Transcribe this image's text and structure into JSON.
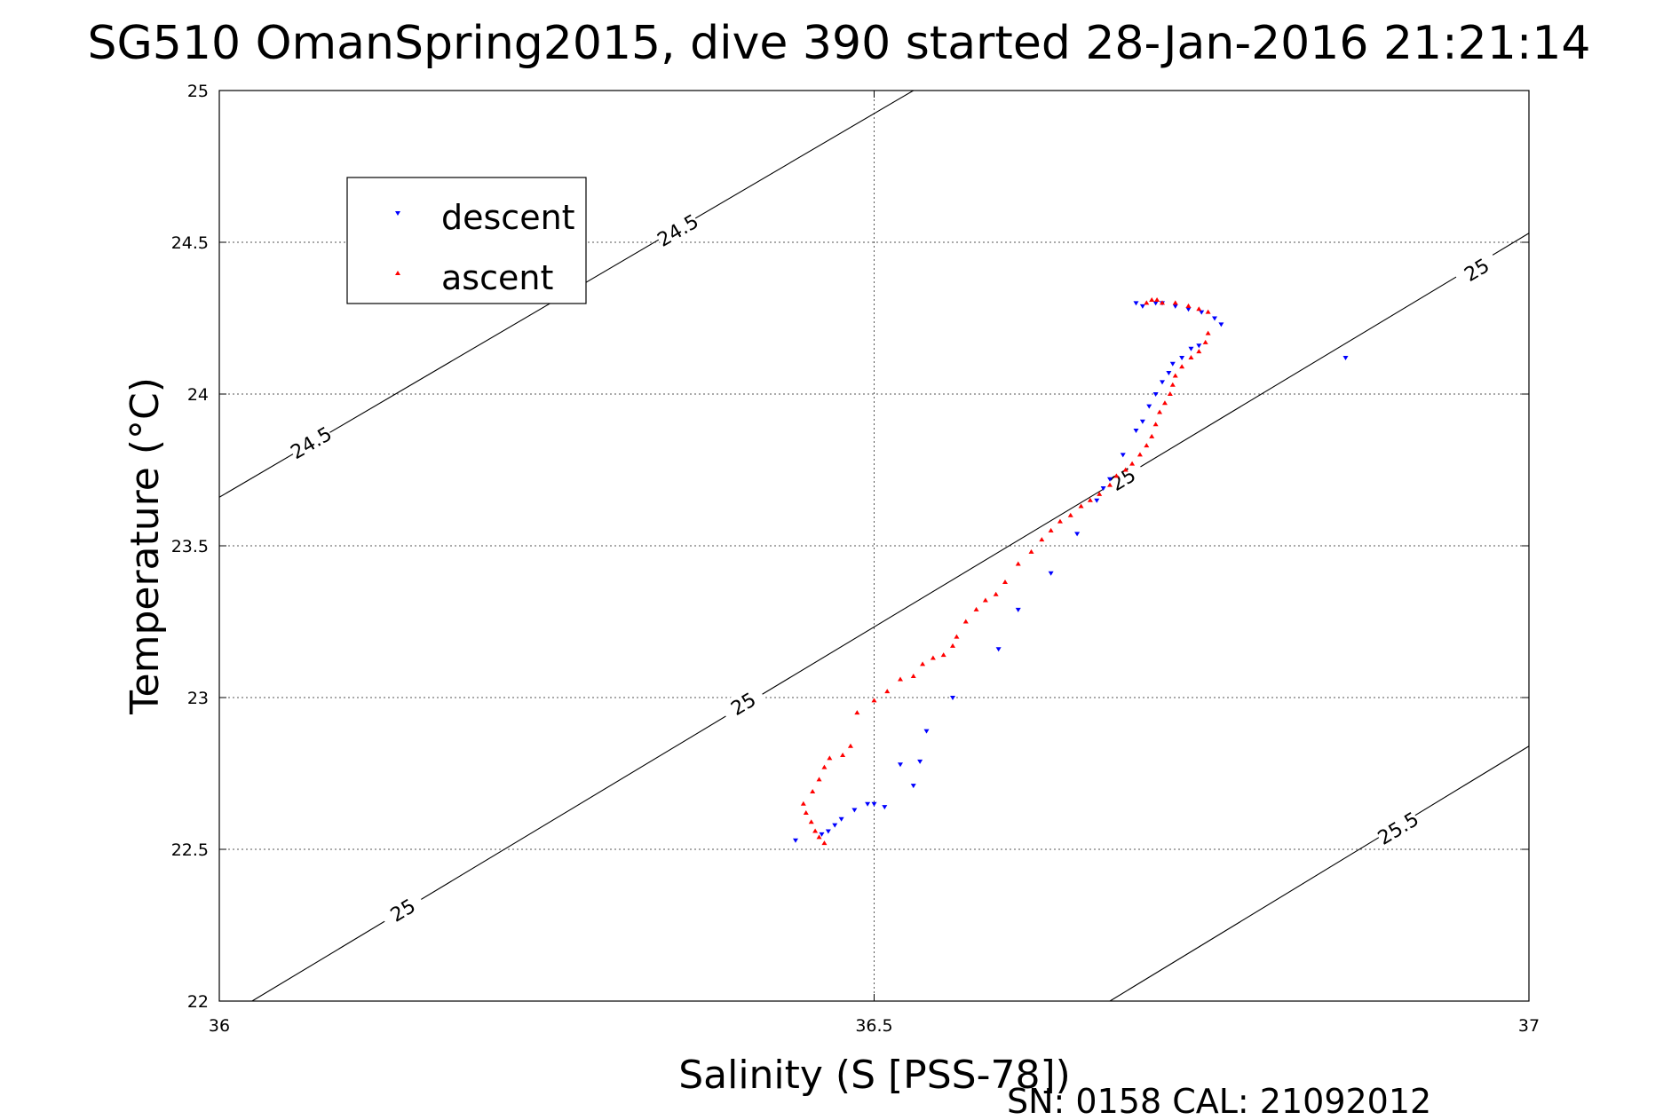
{
  "chart_data": {
    "type": "scatter",
    "title": "SG510 OmanSpring2015, dive 390 started 28-Jan-2016 21:21:14",
    "xlabel": "Salinity (S [PSS-78])",
    "ylabel": "Temperature (°C)",
    "xlim": [
      36,
      37
    ],
    "ylim": [
      22,
      25
    ],
    "xticks": [
      "36",
      "36.5",
      "37"
    ],
    "yticks": [
      "22",
      "22.5",
      "23",
      "23.5",
      "24",
      "24.5",
      "25"
    ],
    "grid": true,
    "legend_position": "top-left",
    "footer": "SN: 0158  CAL: 21092012",
    "density_contours": [
      {
        "label": "24.5",
        "points": [
          [
            36.0,
            23.66
          ],
          [
            36.53,
            25.0
          ]
        ],
        "label_at": [
          [
            36.07,
            23.84
          ],
          [
            36.35,
            24.54
          ]
        ]
      },
      {
        "label": "25",
        "points": [
          [
            36.025,
            22.0
          ],
          [
            37.0,
            24.53
          ]
        ],
        "label_at": [
          [
            36.14,
            22.3
          ],
          [
            36.4,
            22.98
          ],
          [
            36.69,
            23.72
          ],
          [
            36.96,
            24.41
          ]
        ]
      },
      {
        "label": "25.5",
        "points": [
          [
            36.68,
            22.0
          ],
          [
            37.0,
            22.84
          ]
        ],
        "label_at": [
          [
            36.9,
            22.57
          ]
        ]
      }
    ],
    "series": [
      {
        "name": "descent",
        "color": "#0000ff",
        "marker": "triangle-down",
        "points": [
          [
            36.44,
            22.53
          ],
          [
            36.46,
            22.55
          ],
          [
            36.465,
            22.56
          ],
          [
            36.47,
            22.58
          ],
          [
            36.475,
            22.6
          ],
          [
            36.485,
            22.63
          ],
          [
            36.495,
            22.65
          ],
          [
            36.5,
            22.65
          ],
          [
            36.508,
            22.64
          ],
          [
            36.52,
            22.78
          ],
          [
            36.53,
            22.71
          ],
          [
            36.535,
            22.79
          ],
          [
            36.54,
            22.89
          ],
          [
            36.56,
            23.0
          ],
          [
            36.595,
            23.16
          ],
          [
            36.61,
            23.29
          ],
          [
            36.635,
            23.41
          ],
          [
            36.655,
            23.54
          ],
          [
            36.67,
            23.65
          ],
          [
            36.675,
            23.69
          ],
          [
            36.68,
            23.72
          ],
          [
            36.69,
            23.8
          ],
          [
            36.7,
            23.88
          ],
          [
            36.705,
            23.91
          ],
          [
            36.71,
            23.96
          ],
          [
            36.715,
            24.0
          ],
          [
            36.72,
            24.04
          ],
          [
            36.725,
            24.07
          ],
          [
            36.728,
            24.1
          ],
          [
            36.735,
            24.12
          ],
          [
            36.742,
            24.15
          ],
          [
            36.748,
            24.16
          ],
          [
            36.705,
            24.29
          ],
          [
            36.715,
            24.3
          ],
          [
            36.72,
            24.3
          ],
          [
            36.73,
            24.29
          ],
          [
            36.74,
            24.28
          ],
          [
            36.75,
            24.27
          ],
          [
            36.76,
            24.25
          ],
          [
            36.765,
            24.23
          ],
          [
            36.86,
            24.12
          ],
          [
            36.7,
            24.3
          ]
        ]
      },
      {
        "name": "ascent",
        "color": "#ff0000",
        "marker": "triangle-up",
        "points": [
          [
            36.462,
            22.52
          ],
          [
            36.458,
            22.54
          ],
          [
            36.455,
            22.56
          ],
          [
            36.452,
            22.59
          ],
          [
            36.448,
            22.62
          ],
          [
            36.446,
            22.65
          ],
          [
            36.453,
            22.69
          ],
          [
            36.458,
            22.73
          ],
          [
            36.462,
            22.77
          ],
          [
            36.466,
            22.8
          ],
          [
            36.476,
            22.81
          ],
          [
            36.482,
            22.84
          ],
          [
            36.487,
            22.95
          ],
          [
            36.5,
            22.99
          ],
          [
            36.51,
            23.02
          ],
          [
            36.52,
            23.06
          ],
          [
            36.53,
            23.07
          ],
          [
            36.537,
            23.11
          ],
          [
            36.545,
            23.13
          ],
          [
            36.553,
            23.14
          ],
          [
            36.56,
            23.17
          ],
          [
            36.563,
            23.2
          ],
          [
            36.57,
            23.25
          ],
          [
            36.578,
            23.29
          ],
          [
            36.585,
            23.32
          ],
          [
            36.593,
            23.34
          ],
          [
            36.6,
            23.38
          ],
          [
            36.61,
            23.44
          ],
          [
            36.62,
            23.48
          ],
          [
            36.628,
            23.52
          ],
          [
            36.635,
            23.55
          ],
          [
            36.642,
            23.58
          ],
          [
            36.65,
            23.6
          ],
          [
            36.658,
            23.63
          ],
          [
            36.665,
            23.65
          ],
          [
            36.672,
            23.67
          ],
          [
            36.68,
            23.7
          ],
          [
            36.685,
            23.73
          ],
          [
            36.692,
            23.75
          ],
          [
            36.697,
            23.77
          ],
          [
            36.703,
            23.8
          ],
          [
            36.708,
            23.83
          ],
          [
            36.712,
            23.86
          ],
          [
            36.715,
            23.9
          ],
          [
            36.718,
            23.94
          ],
          [
            36.722,
            23.97
          ],
          [
            36.726,
            24.0
          ],
          [
            36.728,
            24.03
          ],
          [
            36.73,
            24.06
          ],
          [
            36.735,
            24.09
          ],
          [
            36.742,
            24.12
          ],
          [
            36.748,
            24.14
          ],
          [
            36.753,
            24.17
          ],
          [
            36.755,
            24.2
          ],
          [
            36.708,
            24.3
          ],
          [
            36.712,
            24.31
          ],
          [
            36.716,
            24.31
          ],
          [
            36.72,
            24.3
          ],
          [
            36.73,
            24.3
          ],
          [
            36.74,
            24.29
          ],
          [
            36.748,
            24.28
          ],
          [
            36.755,
            24.27
          ]
        ]
      }
    ]
  }
}
